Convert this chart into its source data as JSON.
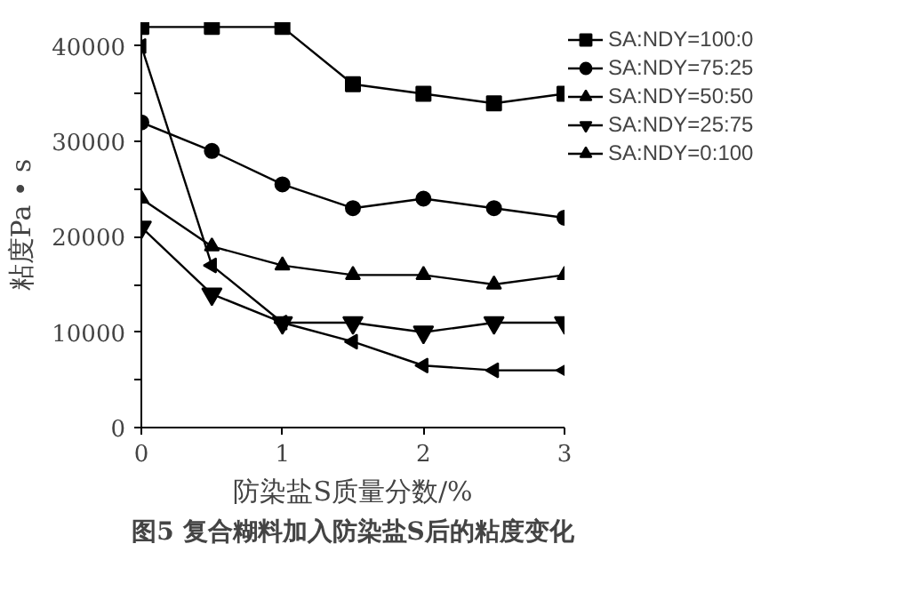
{
  "chart_data": {
    "type": "line",
    "xlabel": "防染盐S质量分数/%",
    "ylabel": "粘度Pa • s",
    "annotations": [
      "图5 复合糊料加入防染盐S后的粘度变化"
    ],
    "x": [
      0,
      0.5,
      1,
      1.5,
      2,
      2.5,
      3
    ],
    "series": [
      {
        "name": "SA:NDY=100:0",
        "color": "#000000",
        "marker": "square",
        "values": [
          42000,
          42000,
          42000,
          36000,
          35000,
          34000,
          35000
        ]
      },
      {
        "name": "SA:NDY=75:25",
        "color": "#000000",
        "marker": "circle",
        "values": [
          32000,
          29000,
          25500,
          23000,
          24000,
          23000,
          22000
        ]
      },
      {
        "name": "SA:NDY=50:50",
        "color": "#000000",
        "marker": "triangle",
        "values": [
          24000,
          19000,
          17000,
          16000,
          16000,
          15000,
          16000
        ]
      },
      {
        "name": "SA:NDY=25:75",
        "color": "#000000",
        "marker": "triangle_down",
        "values": [
          21000,
          14000,
          11000,
          11000,
          10000,
          11000,
          11000
        ]
      },
      {
        "name": "SA:NDY=0:100",
        "color": "#000000",
        "marker": "triangle_left",
        "values": [
          40000,
          17000,
          11000,
          9000,
          6500,
          6000,
          6000
        ]
      }
    ],
    "xlim": [
      0,
      3
    ],
    "xticks": [
      0,
      1,
      2,
      3
    ],
    "ylim": [
      0,
      42500
    ],
    "yticks": [
      0,
      {
        "value": 5000,
        "label": null
      },
      10000,
      {
        "value": 15000,
        "label": null
      },
      20000,
      {
        "value": 25000,
        "label": null
      },
      30000,
      {
        "value": 35000,
        "label": null
      },
      40000
    ],
    "grid": false,
    "legend": "top right",
    "line_style": "solid"
  }
}
